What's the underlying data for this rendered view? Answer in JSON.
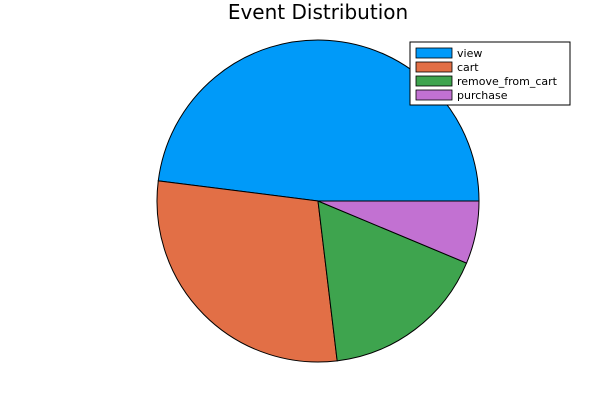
{
  "chart_data": {
    "type": "pie",
    "title": "Event Distribution",
    "labels": [
      "view",
      "cart",
      "remove_from_cart",
      "purchase"
    ],
    "values": [
      48.0,
      28.9,
      16.8,
      6.3
    ],
    "colors": [
      "#009af9",
      "#e26f46",
      "#3ea44e",
      "#c271d2"
    ],
    "legend_position": "top-right"
  }
}
